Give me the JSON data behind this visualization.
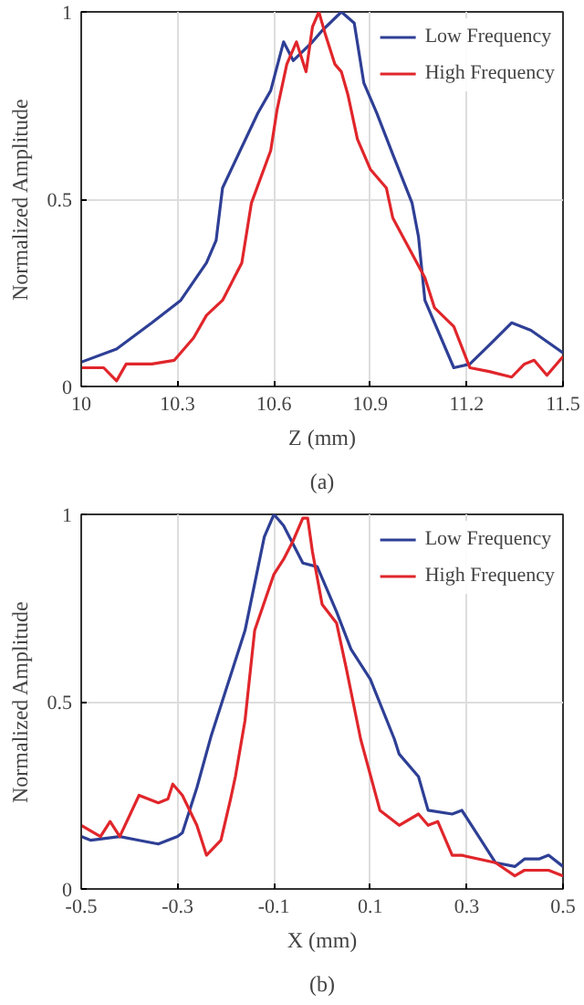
{
  "chart_data": [
    {
      "type": "line",
      "xlabel": "Z (mm)",
      "ylabel": "Normalized Amplitude",
      "annotations": [
        "(a)"
      ],
      "xlim": [
        10,
        11.5
      ],
      "ylim": [
        0,
        1
      ],
      "xticks": [
        10,
        10.3,
        10.6,
        10.9,
        11.2,
        11.5
      ],
      "yticks": [
        0,
        0.5,
        1
      ],
      "grid": true,
      "legend": "top right",
      "line_style": "solid",
      "series": [
        {
          "name": "Low Frequency",
          "color": "#2e3f95",
          "x": [
            10.0,
            10.11,
            10.22,
            10.31,
            10.39,
            10.42,
            10.44,
            10.55,
            10.59,
            10.63,
            10.66,
            10.72,
            10.75,
            10.81,
            10.85,
            10.88,
            10.92,
            10.97,
            11.03,
            11.05,
            11.07,
            11.16,
            11.21,
            11.27,
            11.34,
            11.4,
            11.5
          ],
          "values": [
            0.065,
            0.1,
            0.17,
            0.23,
            0.33,
            0.39,
            0.53,
            0.73,
            0.79,
            0.92,
            0.87,
            0.92,
            0.95,
            1.0,
            0.97,
            0.81,
            0.73,
            0.62,
            0.49,
            0.4,
            0.23,
            0.05,
            0.06,
            0.11,
            0.17,
            0.15,
            0.09
          ]
        },
        {
          "name": "High Frequency",
          "color": "#e0262b",
          "x": [
            10.0,
            10.07,
            10.11,
            10.14,
            10.22,
            10.29,
            10.35,
            10.39,
            10.44,
            10.5,
            10.53,
            10.59,
            10.61,
            10.64,
            10.67,
            10.7,
            10.72,
            10.74,
            10.76,
            10.79,
            10.81,
            10.83,
            10.86,
            10.9,
            10.95,
            10.97,
            11.02,
            11.07,
            11.1,
            11.16,
            11.21,
            11.27,
            11.34,
            11.38,
            11.41,
            11.45,
            11.5
          ],
          "values": [
            0.05,
            0.05,
            0.015,
            0.06,
            0.06,
            0.07,
            0.13,
            0.19,
            0.23,
            0.33,
            0.49,
            0.63,
            0.74,
            0.86,
            0.92,
            0.84,
            0.96,
            1.0,
            0.94,
            0.86,
            0.84,
            0.78,
            0.66,
            0.58,
            0.53,
            0.45,
            0.37,
            0.29,
            0.21,
            0.16,
            0.05,
            0.04,
            0.025,
            0.06,
            0.07,
            0.03,
            0.08
          ]
        }
      ]
    },
    {
      "type": "line",
      "xlabel": "X (mm)",
      "ylabel": "Normalized Amplitude",
      "annotations": [
        "(b)"
      ],
      "xlim": [
        -0.5,
        0.5
      ],
      "ylim": [
        0,
        1
      ],
      "xticks": [
        -0.5,
        -0.3,
        -0.1,
        0.1,
        0.3,
        0.5
      ],
      "yticks": [
        0,
        0.5,
        1
      ],
      "grid": true,
      "legend": "top right",
      "line_style": "solid",
      "series": [
        {
          "name": "Low Frequency",
          "color": "#2e3f95",
          "x": [
            -0.5,
            -0.48,
            -0.42,
            -0.38,
            -0.34,
            -0.3,
            -0.29,
            -0.26,
            -0.23,
            -0.16,
            -0.12,
            -0.1,
            -0.08,
            -0.04,
            -0.01,
            0.03,
            0.06,
            0.1,
            0.15,
            0.16,
            0.2,
            0.22,
            0.27,
            0.29,
            0.33,
            0.36,
            0.4,
            0.42,
            0.45,
            0.47,
            0.5
          ],
          "values": [
            0.14,
            0.13,
            0.14,
            0.13,
            0.12,
            0.14,
            0.15,
            0.27,
            0.41,
            0.69,
            0.94,
            1.0,
            0.97,
            0.87,
            0.86,
            0.74,
            0.64,
            0.56,
            0.4,
            0.36,
            0.3,
            0.21,
            0.2,
            0.21,
            0.13,
            0.07,
            0.06,
            0.08,
            0.08,
            0.09,
            0.06
          ]
        },
        {
          "name": "High Frequency",
          "color": "#e0262b",
          "x": [
            -0.5,
            -0.46,
            -0.44,
            -0.42,
            -0.38,
            -0.34,
            -0.32,
            -0.31,
            -0.29,
            -0.26,
            -0.24,
            -0.21,
            -0.19,
            -0.18,
            -0.16,
            -0.14,
            -0.1,
            -0.08,
            -0.06,
            -0.04,
            -0.03,
            -0.02,
            0.0,
            0.03,
            0.05,
            0.08,
            0.12,
            0.16,
            0.2,
            0.22,
            0.24,
            0.27,
            0.29,
            0.36,
            0.4,
            0.42,
            0.47,
            0.5
          ],
          "values": [
            0.17,
            0.14,
            0.18,
            0.14,
            0.25,
            0.23,
            0.24,
            0.28,
            0.25,
            0.17,
            0.09,
            0.13,
            0.24,
            0.3,
            0.45,
            0.69,
            0.84,
            0.88,
            0.93,
            0.99,
            0.99,
            0.9,
            0.76,
            0.71,
            0.59,
            0.4,
            0.21,
            0.17,
            0.2,
            0.17,
            0.18,
            0.09,
            0.09,
            0.07,
            0.035,
            0.05,
            0.05,
            0.035
          ]
        }
      ]
    }
  ]
}
